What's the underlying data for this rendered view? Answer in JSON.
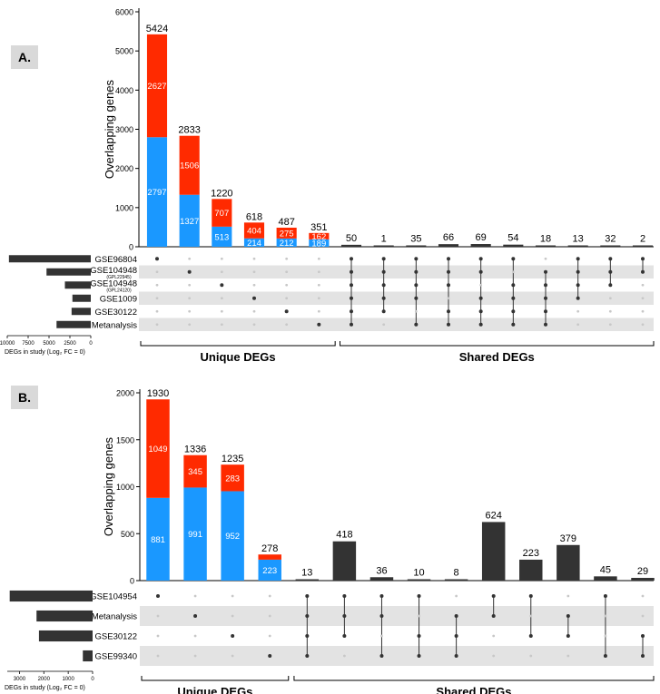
{
  "colors": {
    "red": "#ff2a00",
    "blue": "#1a98ff",
    "dark": "#333333",
    "grey_band": "#e3e3e3",
    "dot_off": "#c8c8c8"
  },
  "chart_data": [
    {
      "panel_label": "A.",
      "type": "bar",
      "ylabel": "Overlapping genes",
      "ylim": [
        0,
        6000
      ],
      "yticks": [
        0,
        1000,
        2000,
        3000,
        4000,
        5000,
        6000
      ],
      "sets": [
        "GSE96804",
        "GSE104948",
        "GSE104948",
        "GSE1009",
        "GSE30122",
        "Metanalysis"
      ],
      "set_sublabels": [
        "",
        "(GPL22945)",
        "(GPL24120)",
        "",
        "",
        ""
      ],
      "set_sizes": [
        9800,
        5300,
        3100,
        2200,
        2300,
        4100
      ],
      "set_size_axis": {
        "label": "DEGs in study  (Log₂ FC = 0)",
        "ticks": [
          "10000",
          "7500",
          "5000",
          "2500",
          "0"
        ],
        "tick_values": [
          10000,
          7500,
          5000,
          2500,
          0
        ],
        "max": 10000
      },
      "unique": [
        {
          "total": 5424,
          "red": 2627,
          "blue": 2797,
          "red_label": "2627",
          "blue_label": "2797",
          "set_index": 0
        },
        {
          "total": 2833,
          "red": 1506,
          "blue": 1327,
          "red_label": "1506",
          "blue_label": "1327",
          "set_index": 1
        },
        {
          "total": 1220,
          "red": 707,
          "blue": 513,
          "red_label": "707",
          "blue_label": "513",
          "set_index": 2
        },
        {
          "total": 618,
          "red": 404,
          "blue": 214,
          "red_label": "404",
          "blue_label": "214",
          "set_index": 3
        },
        {
          "total": 487,
          "red": 275,
          "blue": 212,
          "red_label": "275",
          "blue_label": "212",
          "set_index": 4
        },
        {
          "total": 351,
          "red": 162,
          "blue": 189,
          "red_label": "162",
          "blue_label": "189",
          "set_index": 5
        }
      ],
      "shared": [
        {
          "value": 50,
          "sets": [
            0,
            1,
            2,
            3,
            4,
            5
          ]
        },
        {
          "value": 1,
          "sets": [
            0,
            1,
            2,
            3,
            4
          ]
        },
        {
          "value": 35,
          "sets": [
            0,
            1,
            2,
            3,
            5
          ]
        },
        {
          "value": 66,
          "sets": [
            0,
            1,
            2,
            4,
            5
          ]
        },
        {
          "value": 69,
          "sets": [
            0,
            1,
            3,
            4,
            5
          ]
        },
        {
          "value": 54,
          "sets": [
            0,
            2,
            3,
            4,
            5
          ]
        },
        {
          "value": 18,
          "sets": [
            1,
            2,
            3,
            4,
            5
          ]
        },
        {
          "value": 13,
          "sets": [
            0,
            1,
            2,
            3
          ]
        },
        {
          "value": 32,
          "sets": [
            0,
            1,
            2
          ]
        },
        {
          "value": 2,
          "sets": [
            0,
            1
          ]
        }
      ],
      "unique_label": "Unique DEGs",
      "shared_label": "Shared DEGs"
    },
    {
      "panel_label": "B.",
      "type": "bar",
      "ylabel": "Overlapping genes",
      "ylim": [
        0,
        2000
      ],
      "yticks": [
        0,
        500,
        1000,
        1500,
        2000
      ],
      "sets": [
        "GSE104954",
        "Metanalysis",
        "GSE30122",
        "GSE99340"
      ],
      "set_sublabels": [
        "",
        "",
        "",
        ""
      ],
      "set_sizes": [
        3400,
        2300,
        2200,
        400
      ],
      "set_size_axis": {
        "label": "DEGs in study  (Log₂ FC = 0)",
        "ticks": [
          "3000",
          "2000",
          "1000",
          "0"
        ],
        "tick_values": [
          3000,
          2000,
          1000,
          0
        ],
        "max": 3500
      },
      "unique": [
        {
          "total": 1930,
          "red": 1049,
          "blue": 881,
          "red_label": "1049",
          "blue_label": "881",
          "set_index": 0
        },
        {
          "total": 1336,
          "red": 345,
          "blue": 991,
          "red_label": "345",
          "blue_label": "991",
          "set_index": 1
        },
        {
          "total": 1235,
          "red": 283,
          "blue": 952,
          "red_label": "283",
          "blue_label": "952",
          "set_index": 2
        },
        {
          "total": 278,
          "red": 55,
          "blue": 223,
          "red_label": "",
          "blue_label": "223",
          "set_index": 3
        }
      ],
      "shared": [
        {
          "value": 13,
          "sets": [
            0,
            1,
            2,
            3
          ]
        },
        {
          "value": 418,
          "sets": [
            0,
            1,
            2
          ]
        },
        {
          "value": 36,
          "sets": [
            0,
            1,
            3
          ]
        },
        {
          "value": 10,
          "sets": [
            0,
            2,
            3
          ]
        },
        {
          "value": 8,
          "sets": [
            1,
            2,
            3
          ]
        },
        {
          "value": 624,
          "sets": [
            0,
            1
          ]
        },
        {
          "value": 223,
          "sets": [
            0,
            2
          ]
        },
        {
          "value": 379,
          "sets": [
            1,
            2
          ]
        },
        {
          "value": 45,
          "sets": [
            0,
            3
          ]
        },
        {
          "value": 29,
          "sets": [
            2,
            3
          ]
        }
      ],
      "unique_label": "Unique DEGs",
      "shared_label": "Shared DEGs"
    }
  ]
}
